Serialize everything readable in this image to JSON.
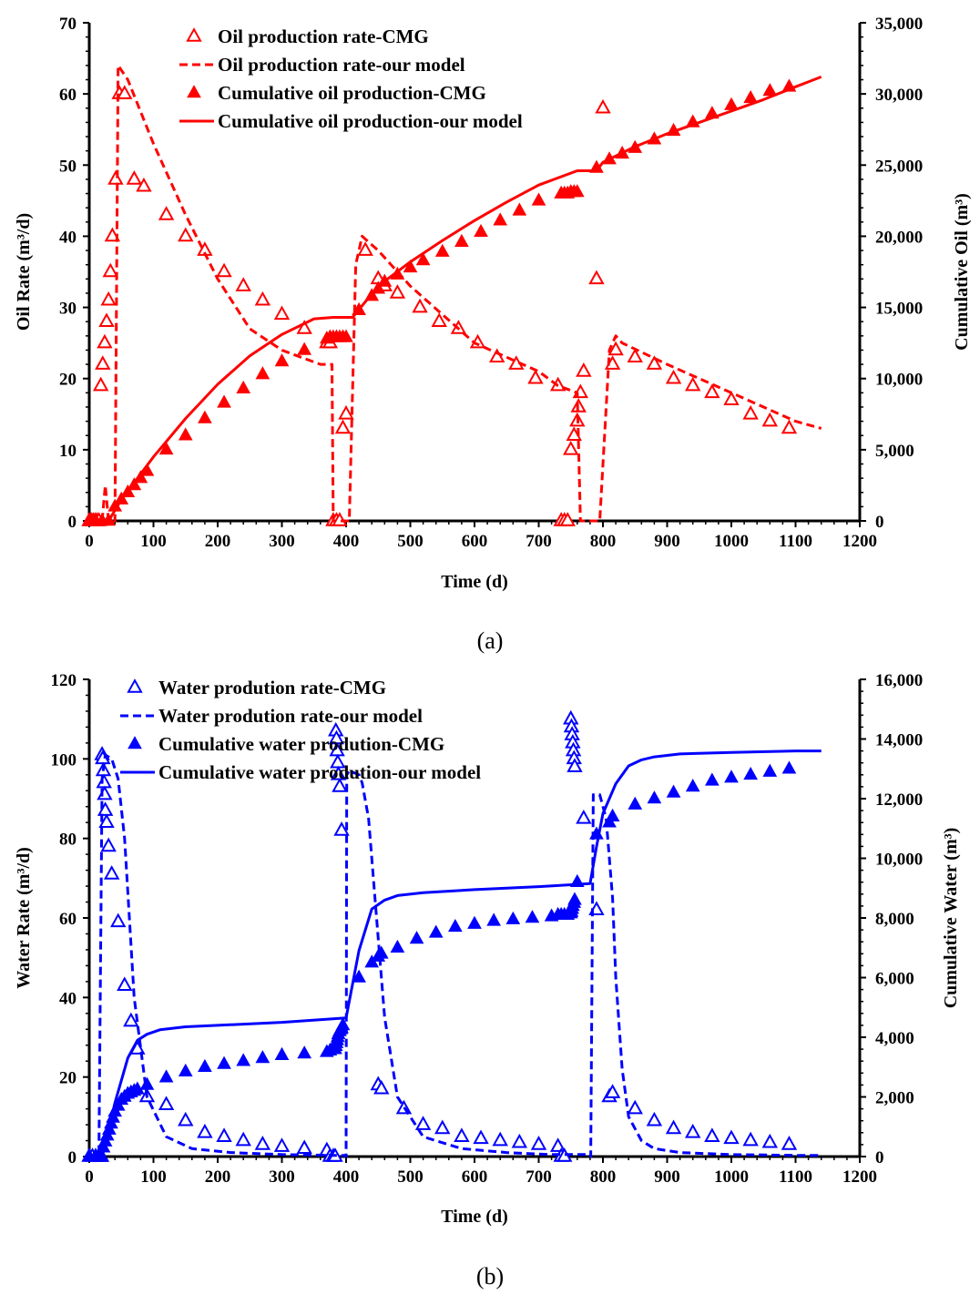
{
  "chart_data": [
    {
      "type": "line",
      "panel_label": "(a)",
      "color": "#ff0000",
      "xlabel": "Time (d)",
      "ylabel_left": "Oil  Rate (m³/d)",
      "ylabel_right": "Cumulative Oil (m³)",
      "xlim": [
        0,
        1200
      ],
      "ylim_left": [
        0,
        70
      ],
      "ylim_right": [
        0,
        35000
      ],
      "x_ticks": [
        "0",
        "100",
        "200",
        "300",
        "400",
        "500",
        "600",
        "700",
        "800",
        "900",
        "1000",
        "1100",
        "1200"
      ],
      "y_left_ticks": [
        "0",
        "10",
        "20",
        "30",
        "40",
        "50",
        "60",
        "70"
      ],
      "y_right_ticks": [
        "0",
        "5,000",
        "10,000",
        "15,000",
        "20,000",
        "25,000",
        "30,000",
        "35,000"
      ],
      "legend": [
        "Oil production rate-CMG",
        "Oil production rate-our model",
        "Cumulative oil production-CMG",
        "Cumulative oil production-our model"
      ],
      "series": [
        {
          "name": "Oil production rate-CMG",
          "axis": "left",
          "marker": "open-triangle",
          "x": [
            0,
            3,
            6,
            9,
            12,
            15,
            18,
            21,
            24,
            27,
            30,
            33,
            36,
            41,
            47,
            55,
            70,
            85,
            120,
            150,
            180,
            210,
            240,
            270,
            300,
            335,
            370,
            375,
            380,
            385,
            390,
            395,
            400,
            430,
            450,
            460,
            480,
            515,
            545,
            575,
            605,
            635,
            665,
            695,
            730,
            735,
            740,
            745,
            750,
            755,
            760,
            762,
            765,
            770,
            790,
            800,
            815,
            820,
            850,
            880,
            910,
            940,
            970,
            1000,
            1030,
            1060,
            1090
          ],
          "y": [
            0,
            0,
            0,
            0,
            0,
            0,
            19,
            22,
            25,
            28,
            31,
            35,
            40,
            48,
            60,
            60,
            48,
            47,
            43,
            40,
            38,
            35,
            33,
            31,
            29,
            27,
            25,
            25,
            0,
            0,
            0,
            13,
            15,
            38,
            34,
            33,
            32,
            30,
            28,
            27,
            25,
            23,
            22,
            20,
            19,
            0,
            0,
            0,
            10,
            12,
            14,
            16,
            18,
            21,
            34,
            58,
            22,
            24,
            23,
            22,
            20,
            19,
            18,
            17,
            15,
            14,
            13
          ]
        },
        {
          "name": "Oil production rate-our model",
          "axis": "left",
          "line": "dashed",
          "x": [
            0,
            20,
            25,
            30,
            35,
            40,
            45,
            60,
            100,
            150,
            200,
            250,
            300,
            330,
            360,
            378,
            380,
            385,
            395,
            405,
            415,
            425,
            450,
            500,
            550,
            600,
            650,
            700,
            730,
            760,
            765,
            780,
            795,
            810,
            820,
            830,
            900,
            1000,
            1100,
            1140
          ],
          "y": [
            0,
            0,
            5,
            0,
            0,
            0,
            64,
            62,
            53,
            43,
            34,
            27,
            24,
            23,
            22,
            22,
            0,
            0,
            0,
            0,
            36,
            40,
            38,
            33,
            29,
            25,
            23,
            21,
            19,
            18,
            0,
            0,
            0,
            24,
            26,
            25,
            22,
            18,
            14,
            13
          ]
        },
        {
          "name": "Cumulative oil production-CMG",
          "axis": "right",
          "marker": "filled-triangle",
          "x": [
            0,
            10,
            20,
            30,
            40,
            50,
            60,
            70,
            80,
            90,
            120,
            150,
            180,
            210,
            240,
            270,
            300,
            335,
            370,
            375,
            380,
            385,
            390,
            395,
            400,
            420,
            440,
            450,
            460,
            480,
            500,
            520,
            550,
            580,
            610,
            640,
            670,
            700,
            735,
            740,
            745,
            750,
            755,
            760,
            790,
            810,
            830,
            850,
            880,
            910,
            940,
            970,
            1000,
            1030,
            1060,
            1090
          ],
          "y": [
            0,
            0,
            0,
            0,
            1000,
            1500,
            2000,
            2500,
            3000,
            3500,
            5000,
            6000,
            7200,
            8300,
            9300,
            10300,
            11200,
            12000,
            12800,
            12900,
            12900,
            12900,
            12900,
            12900,
            12900,
            14800,
            15800,
            16300,
            16800,
            17300,
            17800,
            18300,
            18900,
            19600,
            20300,
            21100,
            21800,
            22500,
            23000,
            23000,
            23000,
            23100,
            23100,
            23100,
            24800,
            25400,
            25800,
            26200,
            26800,
            27400,
            28000,
            28600,
            29200,
            29700,
            30200,
            30500
          ]
        },
        {
          "name": "Cumulative oil production-our model",
          "axis": "right",
          "line": "solid",
          "x": [
            0,
            30,
            50,
            100,
            150,
            200,
            250,
            300,
            350,
            380,
            410,
            450,
            500,
            550,
            600,
            650,
            700,
            760,
            790,
            800,
            850,
            900,
            950,
            1000,
            1050,
            1100,
            1140
          ],
          "y": [
            0,
            0,
            1500,
            4500,
            7200,
            9600,
            11600,
            13100,
            14200,
            14300,
            14300,
            16500,
            18200,
            19700,
            21100,
            22400,
            23600,
            24600,
            24600,
            25200,
            26300,
            27200,
            28000,
            28800,
            29600,
            30500,
            31200
          ]
        }
      ]
    },
    {
      "type": "line",
      "panel_label": "(b)",
      "color": "#0000ff",
      "xlabel": "Time (d)",
      "ylabel_left": "Water  Rate (m³/d)",
      "ylabel_right": "Cumulative Water (m³)",
      "xlim": [
        0,
        1200
      ],
      "ylim_left": [
        0,
        120
      ],
      "ylim_right": [
        0,
        16000
      ],
      "x_ticks": [
        "0",
        "100",
        "200",
        "300",
        "400",
        "500",
        "600",
        "700",
        "800",
        "900",
        "1000",
        "1100",
        "1200"
      ],
      "y_left_ticks": [
        "0",
        "20",
        "40",
        "60",
        "80",
        "100",
        "120"
      ],
      "y_right_ticks": [
        "0",
        "2,000",
        "4,000",
        "6,000",
        "8,000",
        "10,000",
        "12,000",
        "14,000",
        "16,000"
      ],
      "legend": [
        "Water prodution rate-CMG",
        "Water prodution rate-our model",
        "Cumulative water prodution-CMG",
        "Cumulative water prodution-our model"
      ],
      "series": [
        {
          "name": "Water prodution rate-CMG",
          "axis": "left",
          "marker": "open-triangle",
          "x": [
            0,
            5,
            10,
            15,
            18,
            19,
            20,
            21,
            22,
            23,
            24,
            25,
            27,
            30,
            35,
            45,
            55,
            65,
            75,
            90,
            120,
            150,
            180,
            210,
            240,
            270,
            300,
            335,
            370,
            375,
            380,
            383,
            384,
            385,
            386,
            387,
            388,
            390,
            393,
            450,
            455,
            490,
            520,
            550,
            580,
            610,
            640,
            670,
            700,
            730,
            735,
            740,
            750,
            751,
            752,
            753,
            754,
            755,
            756,
            770,
            790,
            810,
            815,
            850,
            880,
            910,
            940,
            970,
            1000,
            1030,
            1060,
            1090
          ],
          "y": [
            0,
            0,
            0,
            0,
            0,
            0,
            101,
            100,
            97,
            94,
            91,
            87,
            84,
            78,
            71,
            59,
            43,
            34,
            27,
            15,
            13,
            9,
            6,
            5,
            4,
            3,
            2.5,
            2,
            1.5,
            0,
            0,
            0,
            107,
            105,
            102,
            99,
            96,
            93,
            82,
            18,
            17,
            12,
            8,
            7,
            5,
            4.5,
            4,
            3.5,
            3,
            2.5,
            0,
            0,
            110,
            108,
            106,
            104,
            102,
            100,
            98,
            85,
            62,
            15,
            16,
            12,
            9,
            7,
            6,
            5,
            4.5,
            4,
            3.5,
            3
          ]
        },
        {
          "name": "Water prodution rate-our model",
          "axis": "left",
          "line": "dashed",
          "x": [
            0,
            15,
            20,
            25,
            35,
            45,
            55,
            70,
            90,
            120,
            160,
            220,
            300,
            380,
            398,
            400,
            401,
            405,
            420,
            425,
            435,
            445,
            460,
            480,
            520,
            580,
            650,
            720,
            780,
            781,
            785,
            795,
            805,
            815,
            820,
            830,
            840,
            860,
            880,
            920,
            1000,
            1100,
            1140
          ],
          "y": [
            0,
            0,
            95,
            101,
            100,
            95,
            80,
            40,
            15,
            5,
            2,
            1,
            0.5,
            0.3,
            0.3,
            0,
            96,
            97,
            96,
            94,
            85,
            65,
            35,
            15,
            5,
            2,
            1,
            0.5,
            0.5,
            0,
            91,
            91,
            85,
            65,
            45,
            22,
            10,
            4,
            2,
            1,
            0.5,
            0.3,
            0.3
          ]
        },
        {
          "name": "Cumulative water prodution-CMG",
          "axis": "right",
          "marker": "filled-triangle",
          "x": [
            0,
            10,
            18,
            22,
            25,
            28,
            31,
            34,
            37,
            40,
            45,
            50,
            55,
            60,
            65,
            70,
            75,
            90,
            120,
            150,
            180,
            210,
            240,
            270,
            300,
            335,
            370,
            375,
            380,
            383,
            384,
            385,
            386,
            387,
            388,
            390,
            393,
            395,
            420,
            440,
            450,
            455,
            480,
            510,
            540,
            570,
            600,
            630,
            660,
            690,
            720,
            730,
            735,
            740,
            745,
            750,
            751,
            752,
            753,
            755,
            756,
            760,
            790,
            810,
            815,
            850,
            880,
            910,
            940,
            970,
            1000,
            1030,
            1060,
            1090
          ],
          "y": [
            0,
            0,
            0,
            300,
            500,
            700,
            900,
            1100,
            1300,
            1500,
            1700,
            1900,
            2000,
            2100,
            2150,
            2200,
            2250,
            2400,
            2650,
            2850,
            3000,
            3100,
            3200,
            3300,
            3400,
            3450,
            3500,
            3550,
            3600,
            3600,
            3700,
            3800,
            3900,
            4000,
            4100,
            4200,
            4300,
            4400,
            6000,
            6500,
            6700,
            6800,
            7000,
            7300,
            7500,
            7700,
            7800,
            7900,
            7950,
            8000,
            8050,
            8100,
            8100,
            8100,
            8100,
            8150,
            8200,
            8300,
            8400,
            8500,
            8600,
            9200,
            10800,
            11200,
            11400,
            11800,
            12000,
            12200,
            12400,
            12600,
            12700,
            12800,
            12900,
            13000
          ]
        },
        {
          "name": "Cumulative water prodution-our model",
          "axis": "right",
          "line": "solid",
          "x": [
            0,
            20,
            40,
            60,
            75,
            90,
            110,
            150,
            200,
            300,
            400,
            420,
            440,
            460,
            480,
            520,
            600,
            700,
            780,
            790,
            800,
            820,
            840,
            860,
            880,
            920,
            1000,
            1100,
            1140
          ],
          "y": [
            0,
            0,
            1800,
            3300,
            3900,
            4100,
            4250,
            4350,
            4400,
            4500,
            4650,
            6900,
            8300,
            8600,
            8750,
            8850,
            8950,
            9050,
            9150,
            10400,
            11500,
            12500,
            13100,
            13300,
            13400,
            13500,
            13550,
            13600,
            13600
          ]
        }
      ]
    }
  ]
}
